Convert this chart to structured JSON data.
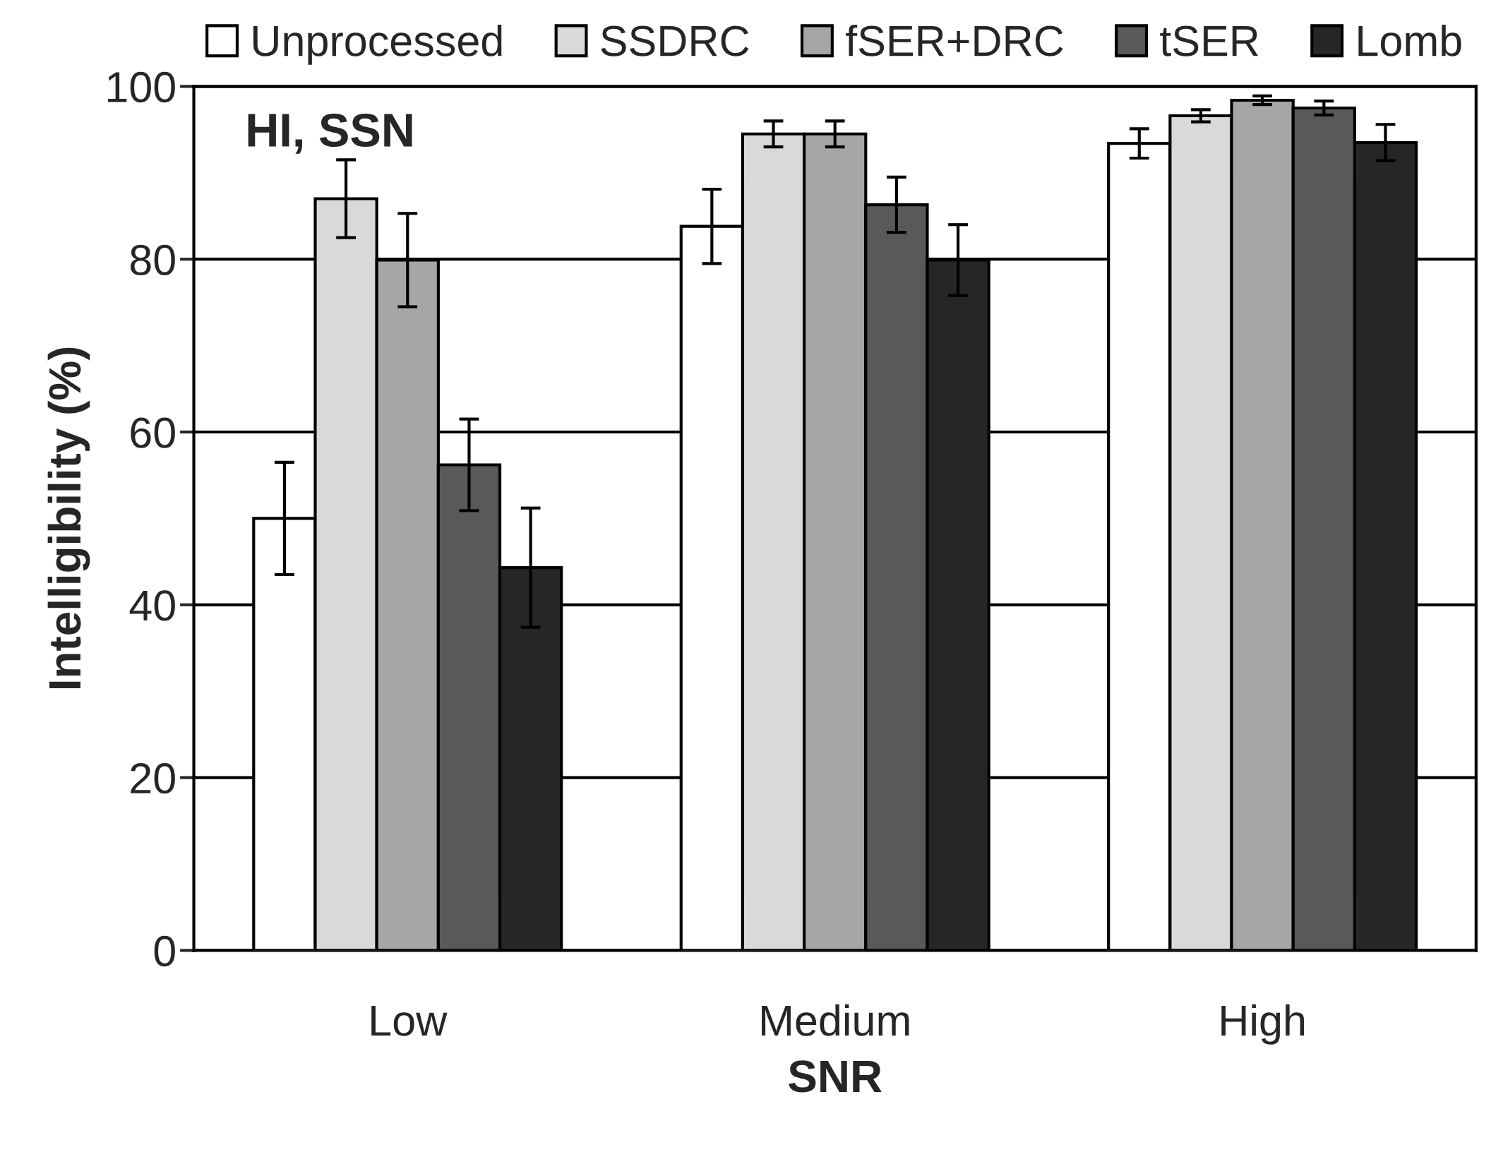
{
  "chart_data": {
    "type": "bar",
    "xlabel": "SNR",
    "ylabel": "Intelligibility (%)",
    "categories": [
      "Low",
      "Medium",
      "High"
    ],
    "series": [
      {
        "name": "Unprocessed",
        "color": "#ffffff",
        "values": [
          50.0,
          83.8,
          93.4
        ],
        "errors": [
          6.5,
          4.3,
          1.7
        ]
      },
      {
        "name": "SSDRC",
        "color": "#d9d9d9",
        "values": [
          87.0,
          94.5,
          96.6
        ],
        "errors": [
          4.5,
          1.5,
          0.7
        ]
      },
      {
        "name": "fSER+DRC",
        "color": "#a6a6a6",
        "values": [
          79.9,
          94.5,
          98.4
        ],
        "errors": [
          5.4,
          1.5,
          0.5
        ]
      },
      {
        "name": "tSER",
        "color": "#595959",
        "values": [
          56.2,
          86.3,
          97.5
        ],
        "errors": [
          5.3,
          3.2,
          0.8
        ]
      },
      {
        "name": "Lomb",
        "color": "#262626",
        "values": [
          44.3,
          79.9,
          93.5
        ],
        "errors": [
          6.9,
          4.1,
          2.1
        ]
      }
    ],
    "ylim": [
      0,
      100
    ],
    "yticks": [
      0,
      20,
      40,
      60,
      80,
      100
    ],
    "grid": "y",
    "legend": "top",
    "annotations": [
      "HI, SSN"
    ]
  }
}
